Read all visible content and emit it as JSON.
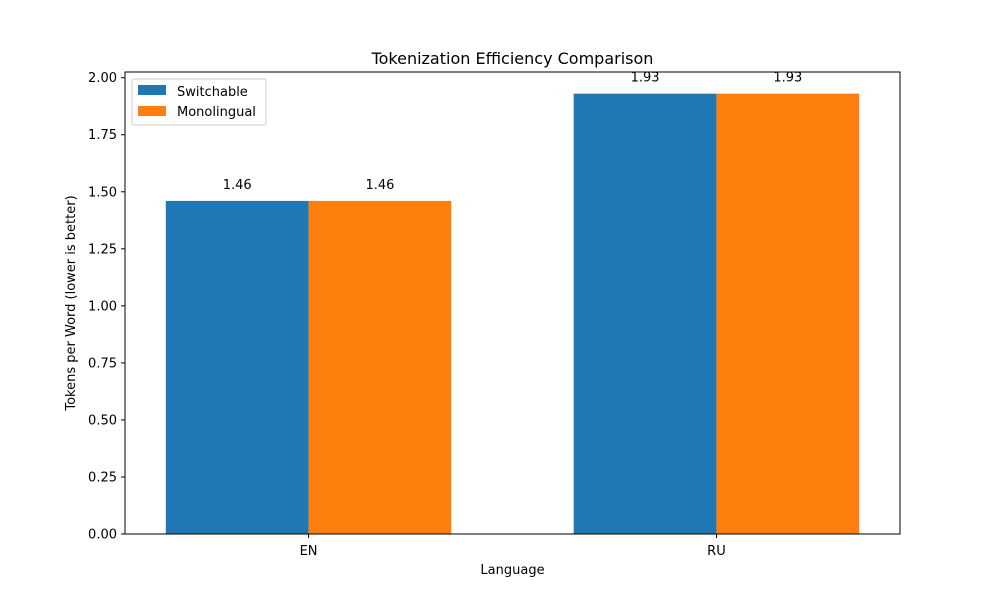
{
  "chart_data": {
    "type": "bar",
    "title": "Tokenization Efficiency Comparison",
    "xlabel": "Language",
    "ylabel": "Tokens per Word (lower is better)",
    "categories": [
      "EN",
      "RU"
    ],
    "series": [
      {
        "name": "Switchable",
        "values": [
          1.46,
          1.93
        ],
        "color": "#1f77b4"
      },
      {
        "name": "Monolingual",
        "values": [
          1.46,
          1.93
        ],
        "color": "#ff7f0e"
      }
    ],
    "ylim": [
      0,
      2.025
    ],
    "yticks": [
      0.0,
      0.25,
      0.5,
      0.75,
      1.0,
      1.25,
      1.5,
      1.75,
      2.0
    ],
    "ytick_labels": [
      "0.00",
      "0.25",
      "0.50",
      "0.75",
      "1.00",
      "1.25",
      "1.50",
      "1.75",
      "2.00"
    ],
    "data_labels": [
      [
        "1.46",
        "1.93"
      ],
      [
        "1.46",
        "1.93"
      ]
    ],
    "grid": false,
    "legend_position": "top-left"
  }
}
